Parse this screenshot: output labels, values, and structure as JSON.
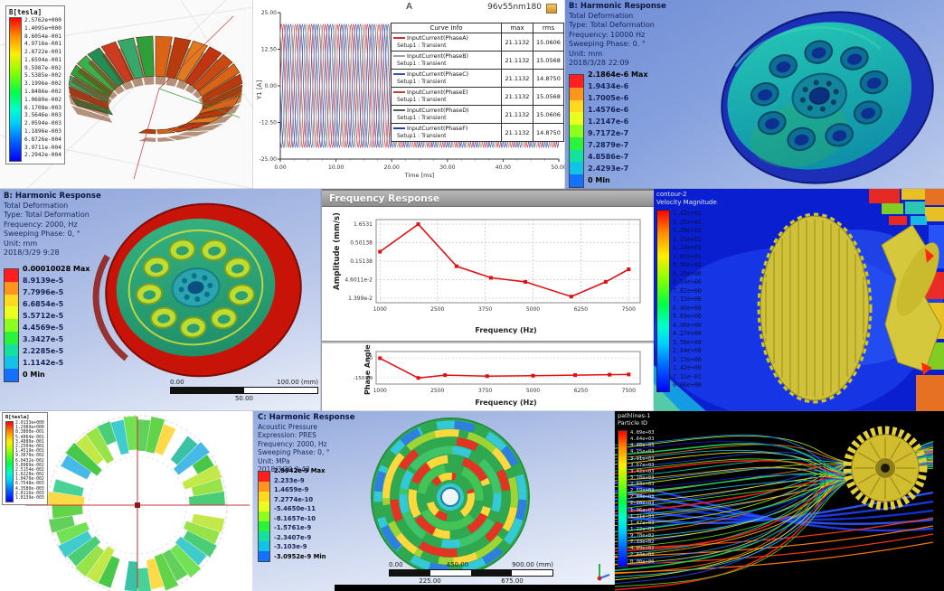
{
  "colors": {
    "rainbow": [
      "#ff2020",
      "#ff7a10",
      "#ffc010",
      "#fff010",
      "#b8f010",
      "#58e018",
      "#18d858",
      "#10dcb0",
      "#10c8e8",
      "#1888ff",
      "#2048ff",
      "#1818d8"
    ],
    "bands9": [
      "#ff1f1f",
      "#ff9421",
      "#ffd91f",
      "#e8ff1f",
      "#8cff1f",
      "#2bf23d",
      "#14e0a0",
      "#14c2e8",
      "#1470ff"
    ],
    "accent_red": "#d03030",
    "ansys_text": "#17265f"
  },
  "panels": {
    "flux_torus": {
      "legend_title": "B[tesla]",
      "values": [
        "2.5762e+000",
        "1.4095e+000",
        "8.6054e-001",
        "4.9716e-001",
        "2.8722e-001",
        "1.6594e-001",
        "9.5987e-002",
        "5.5385e-002",
        "3.1996e-002",
        "1.8486e-002",
        "1.0680e-002",
        "6.1708e-003",
        "3.5646e-003",
        "2.0594e-003",
        "1.1896e-003",
        "6.8726e-004",
        "3.9711e-004",
        "2.2942e-004"
      ]
    },
    "current_plot": {
      "title": "A",
      "corner_label": "96v55nm180",
      "xlabel": "Time [ms]",
      "ylabel": "Y1 [A]",
      "yticks": [
        "25.00",
        "12.50",
        "0.00",
        "-12.50",
        "-25.00"
      ],
      "xticks": [
        "0.00",
        "10.00",
        "20.00",
        "30.00",
        "40.00",
        "50.00"
      ],
      "table": {
        "headers": [
          "Curve Info",
          "max",
          "rms"
        ],
        "rows": [
          {
            "label": "InputCurrent(PhaseA)",
            "sub": "Setup1 : Transient",
            "max": "21.1132",
            "rms": "15.0606",
            "color": "#d03030"
          },
          {
            "label": "InputCurrent(PhaseB)",
            "sub": "Setup1 : Transient",
            "max": "21.1132",
            "rms": "15.0568",
            "color": "#9aa0a8"
          },
          {
            "label": "InputCurrent(PhaseC)",
            "sub": "Setup1 : Transient",
            "max": "21.1132",
            "rms": "14.8750",
            "color": "#3a55b0"
          },
          {
            "label": "InputCurrent(PhaseE)",
            "sub": "Setup1 : Transient",
            "max": "21.1132",
            "rms": "15.0568",
            "color": "#c04040"
          },
          {
            "label": "InputCurrent(PhaseD)",
            "sub": "Setup1 : Transient",
            "max": "21.1132",
            "rms": "15.0606",
            "color": "#555c66"
          },
          {
            "label": "InputCurrent(PhaseF)",
            "sub": "Setup1 : Transient",
            "max": "21.1132",
            "rms": "14.8750",
            "color": "#2a3faf"
          }
        ]
      }
    },
    "harmonic_top": {
      "info": [
        "B: Harmonic Response",
        "Total Deformation",
        "Type: Total Deformation",
        "Frequency: 10000 Hz",
        "Sweeping Phase: 0. °",
        "Unit: mm",
        "2018/3/28 22:09"
      ],
      "legend": [
        "2.1864e-6 Max",
        "1.9434e-6",
        "1.7005e-6",
        "1.4576e-6",
        "1.2147e-6",
        "9.7172e-7",
        "7.2879e-7",
        "4.8586e-7",
        "2.4293e-7",
        "0 Min"
      ]
    },
    "harmonic_mid": {
      "info": [
        "B: Harmonic Response",
        "Total Deformation",
        "Type: Total Deformation",
        "Frequency: 2000, Hz",
        "Sweeping Phase: 0, °",
        "Unit: mm",
        "2018/3/29 9:28"
      ],
      "legend": [
        "0.00010028 Max",
        "8.9139e-5",
        "7.7996e-5",
        "6.6854e-5",
        "5.5712e-5",
        "4.4569e-5",
        "3.3427e-5",
        "2.2285e-5",
        "1.1142e-5",
        "0 Min"
      ],
      "scale": {
        "left": "0.00",
        "right": "100.00 (mm)",
        "mid": "50.00"
      }
    },
    "freq_response": {
      "window_title": "Frequency Response",
      "amp_ylabel": "Amplitude (mm/s)",
      "phase_ylabel": "Phase Angle",
      "xlabel": "Frequency (Hz)",
      "amp_yticks": [
        "1.6531",
        "0.50138",
        "0.15138",
        "4.6011e-2",
        "1.399e-2"
      ],
      "phase_yticks": [
        "90",
        "-150.29"
      ],
      "xticks": [
        "1000",
        "2500",
        "3750",
        "5000",
        "6250",
        "7500"
      ]
    },
    "cfd_velocity": {
      "header": [
        "contour-2",
        "Velocity Magnitude"
      ],
      "values": [
        "1.42e+01",
        "1.35e+01",
        "1.28e+01",
        "1.21e+01",
        "1.14e+01",
        "1.07e+01",
        "9.96e+00",
        "9.25e+00",
        "8.54e+00",
        "7.82e+00",
        "7.11e+00",
        "6.40e+00",
        "5.69e+00",
        "4.98e+00",
        "4.27e+00",
        "3.56e+00",
        "2.84e+00",
        "2.13e+00",
        "1.42e+00",
        "7.11e-01",
        "0.00e+00"
      ]
    },
    "flux_ring": {
      "legend_title": "B[tesla]",
      "values": [
        "2.0133e+000",
        "1.2989e+000",
        "8.3800e-001",
        "5.4064e-001",
        "3.4880e-001",
        "2.2504e-001",
        "1.4519e-001",
        "9.3670e-002",
        "6.0432e-002",
        "3.8989e-002",
        "2.5154e-002",
        "1.6228e-002",
        "1.0470e-002",
        "6.7548e-003",
        "4.3580e-003",
        "2.8116e-003",
        "1.8139e-003"
      ]
    },
    "acoustic": {
      "info": [
        "C: Harmonic Response",
        "Acoustic Pressure",
        "Expression: PRES",
        "Frequency: 2000, Hz",
        "Sweeping Phase: 0, °",
        "Unit: MPa",
        "2018/3/29 9:43"
      ],
      "legend": [
        "2.9942e-9 Max",
        "2.233e-9",
        "1.4659e-9",
        "7.2774e-10",
        "-5.4650e-11",
        "-8.1657e-10",
        "-1.5761e-9",
        "-2.3407e-9",
        "-3.103e-9",
        "-3.0952e-9 Min"
      ],
      "scale": {
        "top": [
          "0.00",
          "450.00",
          "900.00 (mm)"
        ],
        "bottom": [
          "225.00",
          "675.00"
        ]
      }
    },
    "pathlines": {
      "header": [
        "pathlines-1",
        "Particle ID"
      ],
      "values": [
        "4.89e+03",
        "4.64e+03",
        "4.40e+03",
        "4.15e+03",
        "3.91e+03",
        "3.67e+03",
        "3.42e+03",
        "3.18e+03",
        "2.93e+03",
        "2.69e+03",
        "2.44e+03",
        "2.20e+03",
        "1.96e+03",
        "1.71e+03",
        "1.47e+03",
        "1.22e+03",
        "9.78e+02",
        "7.33e+02",
        "4.89e+02",
        "2.44e+02",
        "0.00e+00"
      ]
    }
  },
  "chart_data": [
    {
      "type": "line",
      "title": "A",
      "subtitle": "96v55nm180",
      "xlabel": "Time [ms]",
      "ylabel": "Y1 [A]",
      "xlim": [
        0,
        50
      ],
      "ylim": [
        -25,
        25
      ],
      "xticks": [
        0,
        10,
        20,
        30,
        40,
        50
      ],
      "yticks": [
        25,
        12.5,
        0,
        -12.5,
        -25
      ],
      "waveform": "sine",
      "amplitude": 21.1132,
      "period_ms": 2.5,
      "series": [
        {
          "name": "InputCurrent(PhaseA)",
          "setup": "Setup1 : Transient",
          "phase_deg": 0,
          "max": 21.1132,
          "rms": 15.0606,
          "color": "#d03030"
        },
        {
          "name": "InputCurrent(PhaseB)",
          "setup": "Setup1 : Transient",
          "phase_deg": 120,
          "max": 21.1132,
          "rms": 15.0568,
          "color": "#9aa0a8"
        },
        {
          "name": "InputCurrent(PhaseC)",
          "setup": "Setup1 : Transient",
          "phase_deg": 240,
          "max": 21.1132,
          "rms": 14.875,
          "color": "#3a55b0"
        },
        {
          "name": "InputCurrent(PhaseE)",
          "setup": "Setup1 : Transient",
          "phase_deg": 60,
          "max": 21.1132,
          "rms": 15.0568,
          "color": "#c04040"
        },
        {
          "name": "InputCurrent(PhaseD)",
          "setup": "Setup1 : Transient",
          "phase_deg": 180,
          "max": 21.1132,
          "rms": 15.0606,
          "color": "#555c66"
        },
        {
          "name": "InputCurrent(PhaseF)",
          "setup": "Setup1 : Transient",
          "phase_deg": 300,
          "max": 21.1132,
          "rms": 14.875,
          "color": "#2a3faf"
        }
      ],
      "legend_position": "right"
    },
    {
      "type": "line",
      "title": "Frequency Response - Amplitude",
      "xlabel": "Frequency (Hz)",
      "ylabel": "Amplitude (mm/s)",
      "yscale": "log",
      "xticks": [
        1000,
        2500,
        3750,
        5000,
        6250,
        7500
      ],
      "ytick_values": [
        1.6531,
        0.50138,
        0.15138,
        0.046011,
        0.01399
      ],
      "x": [
        1000,
        2000,
        3000,
        3900,
        4800,
        6000,
        6900,
        7500
      ],
      "y": [
        0.28,
        1.65,
        0.11,
        0.052,
        0.04,
        0.0155,
        0.04,
        0.09
      ],
      "grid": true,
      "line_color": "#e01010"
    },
    {
      "type": "line",
      "title": "Frequency Response - Phase",
      "xlabel": "Frequency (Hz)",
      "ylabel": "Phase Angle",
      "xticks": [
        1000,
        2500,
        3750,
        5000,
        6250,
        7500
      ],
      "ytick_values": [
        90,
        -150.29
      ],
      "x": [
        1000,
        2000,
        2700,
        3800,
        5000,
        6100,
        7000,
        7500
      ],
      "y": [
        88,
        -155,
        -120,
        -133,
        -127,
        -120,
        -115,
        -112
      ],
      "line_color": "#e01010"
    }
  ]
}
